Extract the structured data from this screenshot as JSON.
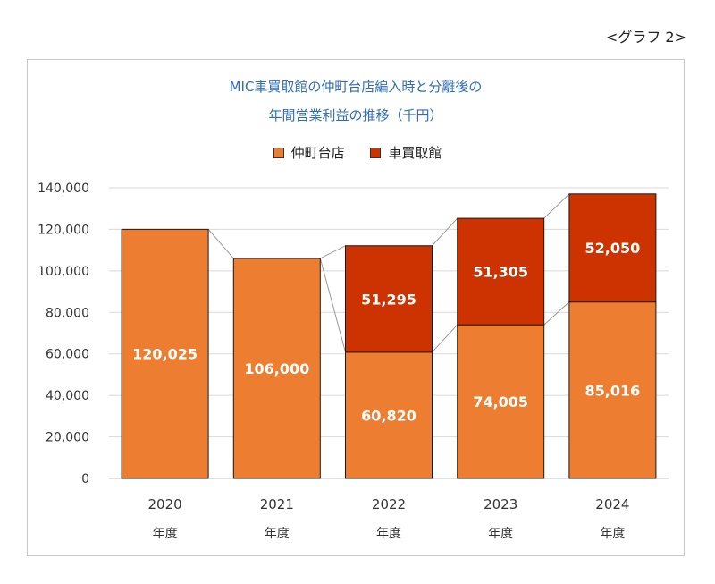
{
  "graph_label": "<グラフ 2>",
  "chart_data": {
    "type": "bar",
    "stacked": true,
    "title_lines": [
      "MIC車買取館の仲町台店編入時と分離後の",
      "年間営業利益の推移（千円）"
    ],
    "categories": [
      "2020",
      "2021",
      "2022",
      "2023",
      "2024"
    ],
    "category_sublabel": "年度",
    "series": [
      {
        "name": "仲町台店",
        "color": "#ed7d31",
        "values": [
          120025,
          106000,
          60820,
          74005,
          85016
        ]
      },
      {
        "name": "車買取館",
        "color": "#cc3300",
        "values": [
          null,
          null,
          51295,
          51305,
          52050
        ]
      }
    ],
    "data_labels": [
      [
        "120,025",
        "106,000",
        "60,820",
        "74,005",
        "85,016"
      ],
      [
        "",
        "",
        "51,295",
        "51,305",
        "52,050"
      ]
    ],
    "ylim": [
      0,
      140000
    ],
    "yticks": [
      0,
      20000,
      40000,
      60000,
      80000,
      100000,
      120000,
      140000
    ],
    "ytick_labels": [
      "0",
      "20,000",
      "40,000",
      "60,000",
      "80,000",
      "100,000",
      "120,000",
      "140,000"
    ],
    "grid": true,
    "legend_position": "top",
    "series_lines": true
  }
}
